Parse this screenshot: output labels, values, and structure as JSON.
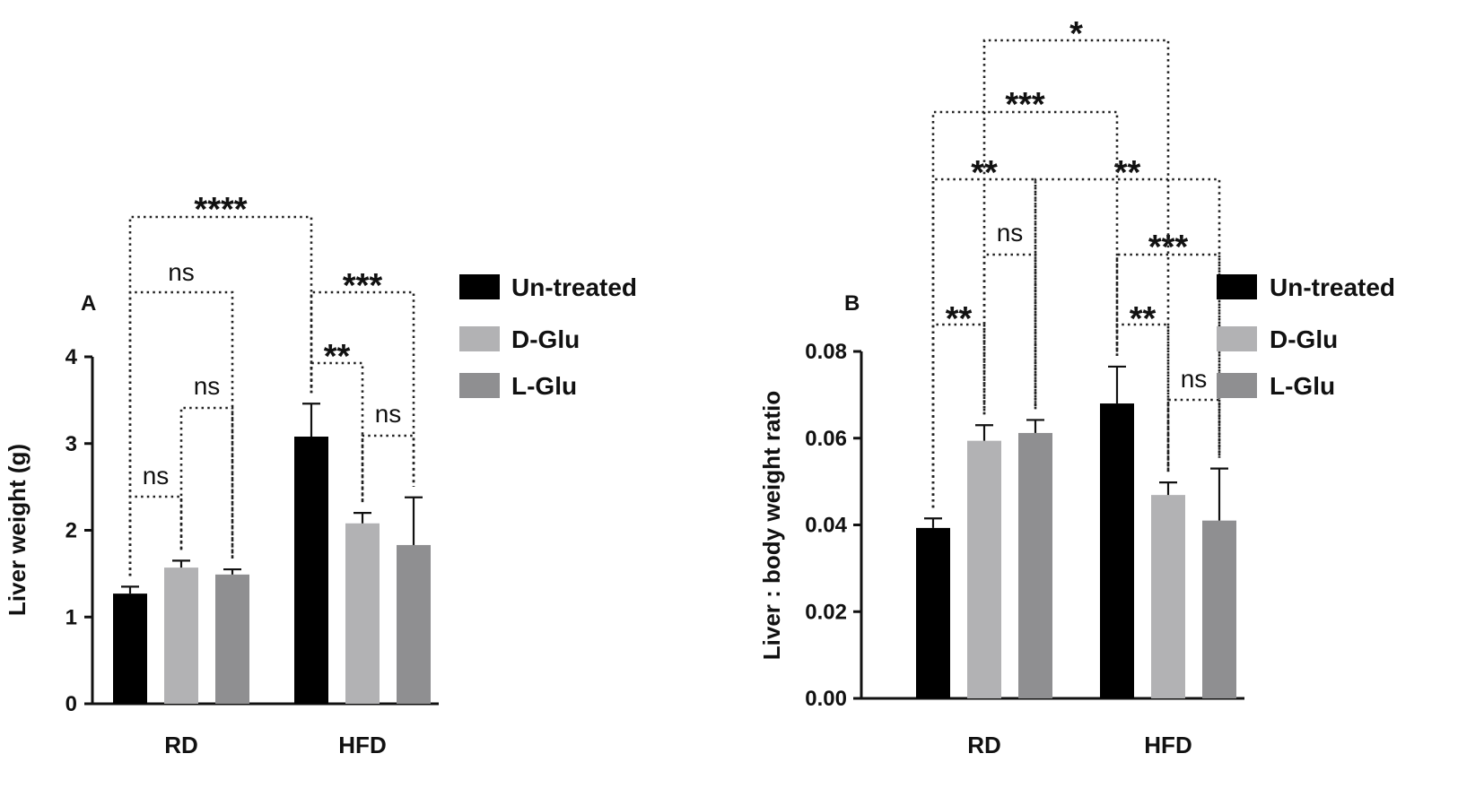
{
  "chart_data": [
    {
      "type": "bar",
      "panel_label": "A",
      "ylabel": "Liver weight (g)",
      "categories": [
        "RD",
        "HFD"
      ],
      "ylim": [
        0,
        4
      ],
      "yticks": [
        "0",
        "1",
        "2",
        "3",
        "4"
      ],
      "series": [
        {
          "name": "Un-treated",
          "color": "#000000",
          "values": [
            1.27,
            3.08
          ],
          "errors": [
            0.08,
            0.38
          ]
        },
        {
          "name": "D-Glu",
          "color": "#b2b2b4",
          "values": [
            1.57,
            2.08
          ],
          "errors": [
            0.08,
            0.12
          ]
        },
        {
          "name": "L-Glu",
          "color": "#8f8f91",
          "values": [
            1.49,
            1.83
          ],
          "errors": [
            0.06,
            0.55
          ]
        }
      ],
      "significance": [
        {
          "label": "ns",
          "from": [
            0,
            0
          ],
          "to": [
            0,
            1
          ]
        },
        {
          "label": "ns",
          "from": [
            0,
            1
          ],
          "to": [
            0,
            2
          ]
        },
        {
          "label": "ns",
          "from": [
            0,
            0
          ],
          "to": [
            0,
            2
          ]
        },
        {
          "label": "****",
          "from": [
            0,
            0
          ],
          "to": [
            1,
            0
          ]
        },
        {
          "label": "**",
          "from": [
            1,
            0
          ],
          "to": [
            1,
            1
          ]
        },
        {
          "label": "***",
          "from": [
            1,
            0
          ],
          "to": [
            1,
            2
          ]
        },
        {
          "label": "ns",
          "from": [
            1,
            1
          ],
          "to": [
            1,
            2
          ]
        }
      ]
    },
    {
      "type": "bar",
      "panel_label": "B",
      "ylabel": "Liver : body weight ratio",
      "categories": [
        "RD",
        "HFD"
      ],
      "ylim": [
        0,
        0.08
      ],
      "yticks": [
        "0.00",
        "0.02",
        "0.04",
        "0.06",
        "0.08"
      ],
      "series": [
        {
          "name": "Un-treated",
          "color": "#000000",
          "values": [
            0.0393,
            0.068
          ],
          "errors": [
            0.0022,
            0.0085
          ]
        },
        {
          "name": "D-Glu",
          "color": "#b2b2b4",
          "values": [
            0.0594,
            0.0469
          ],
          "errors": [
            0.0036,
            0.0029
          ]
        },
        {
          "name": "L-Glu",
          "color": "#8f8f91",
          "values": [
            0.0612,
            0.041
          ],
          "errors": [
            0.003,
            0.012
          ]
        }
      ],
      "significance": [
        {
          "label": "**",
          "from": [
            0,
            0
          ],
          "to": [
            0,
            1
          ]
        },
        {
          "label": "ns",
          "from": [
            0,
            1
          ],
          "to": [
            0,
            2
          ]
        },
        {
          "label": "**",
          "from": [
            0,
            0
          ],
          "to": [
            0,
            2
          ]
        },
        {
          "label": "**",
          "from": [
            1,
            0
          ],
          "to": [
            1,
            1
          ]
        },
        {
          "label": "ns",
          "from": [
            1,
            1
          ],
          "to": [
            1,
            2
          ]
        },
        {
          "label": "***",
          "from": [
            1,
            0
          ],
          "to": [
            1,
            2
          ]
        },
        {
          "label": "**",
          "from": [
            0,
            2
          ],
          "to": [
            1,
            2
          ]
        },
        {
          "label": "***",
          "from": [
            0,
            0
          ],
          "to": [
            1,
            0
          ]
        },
        {
          "label": "*",
          "from": [
            0,
            1
          ],
          "to": [
            1,
            1
          ]
        }
      ]
    }
  ]
}
